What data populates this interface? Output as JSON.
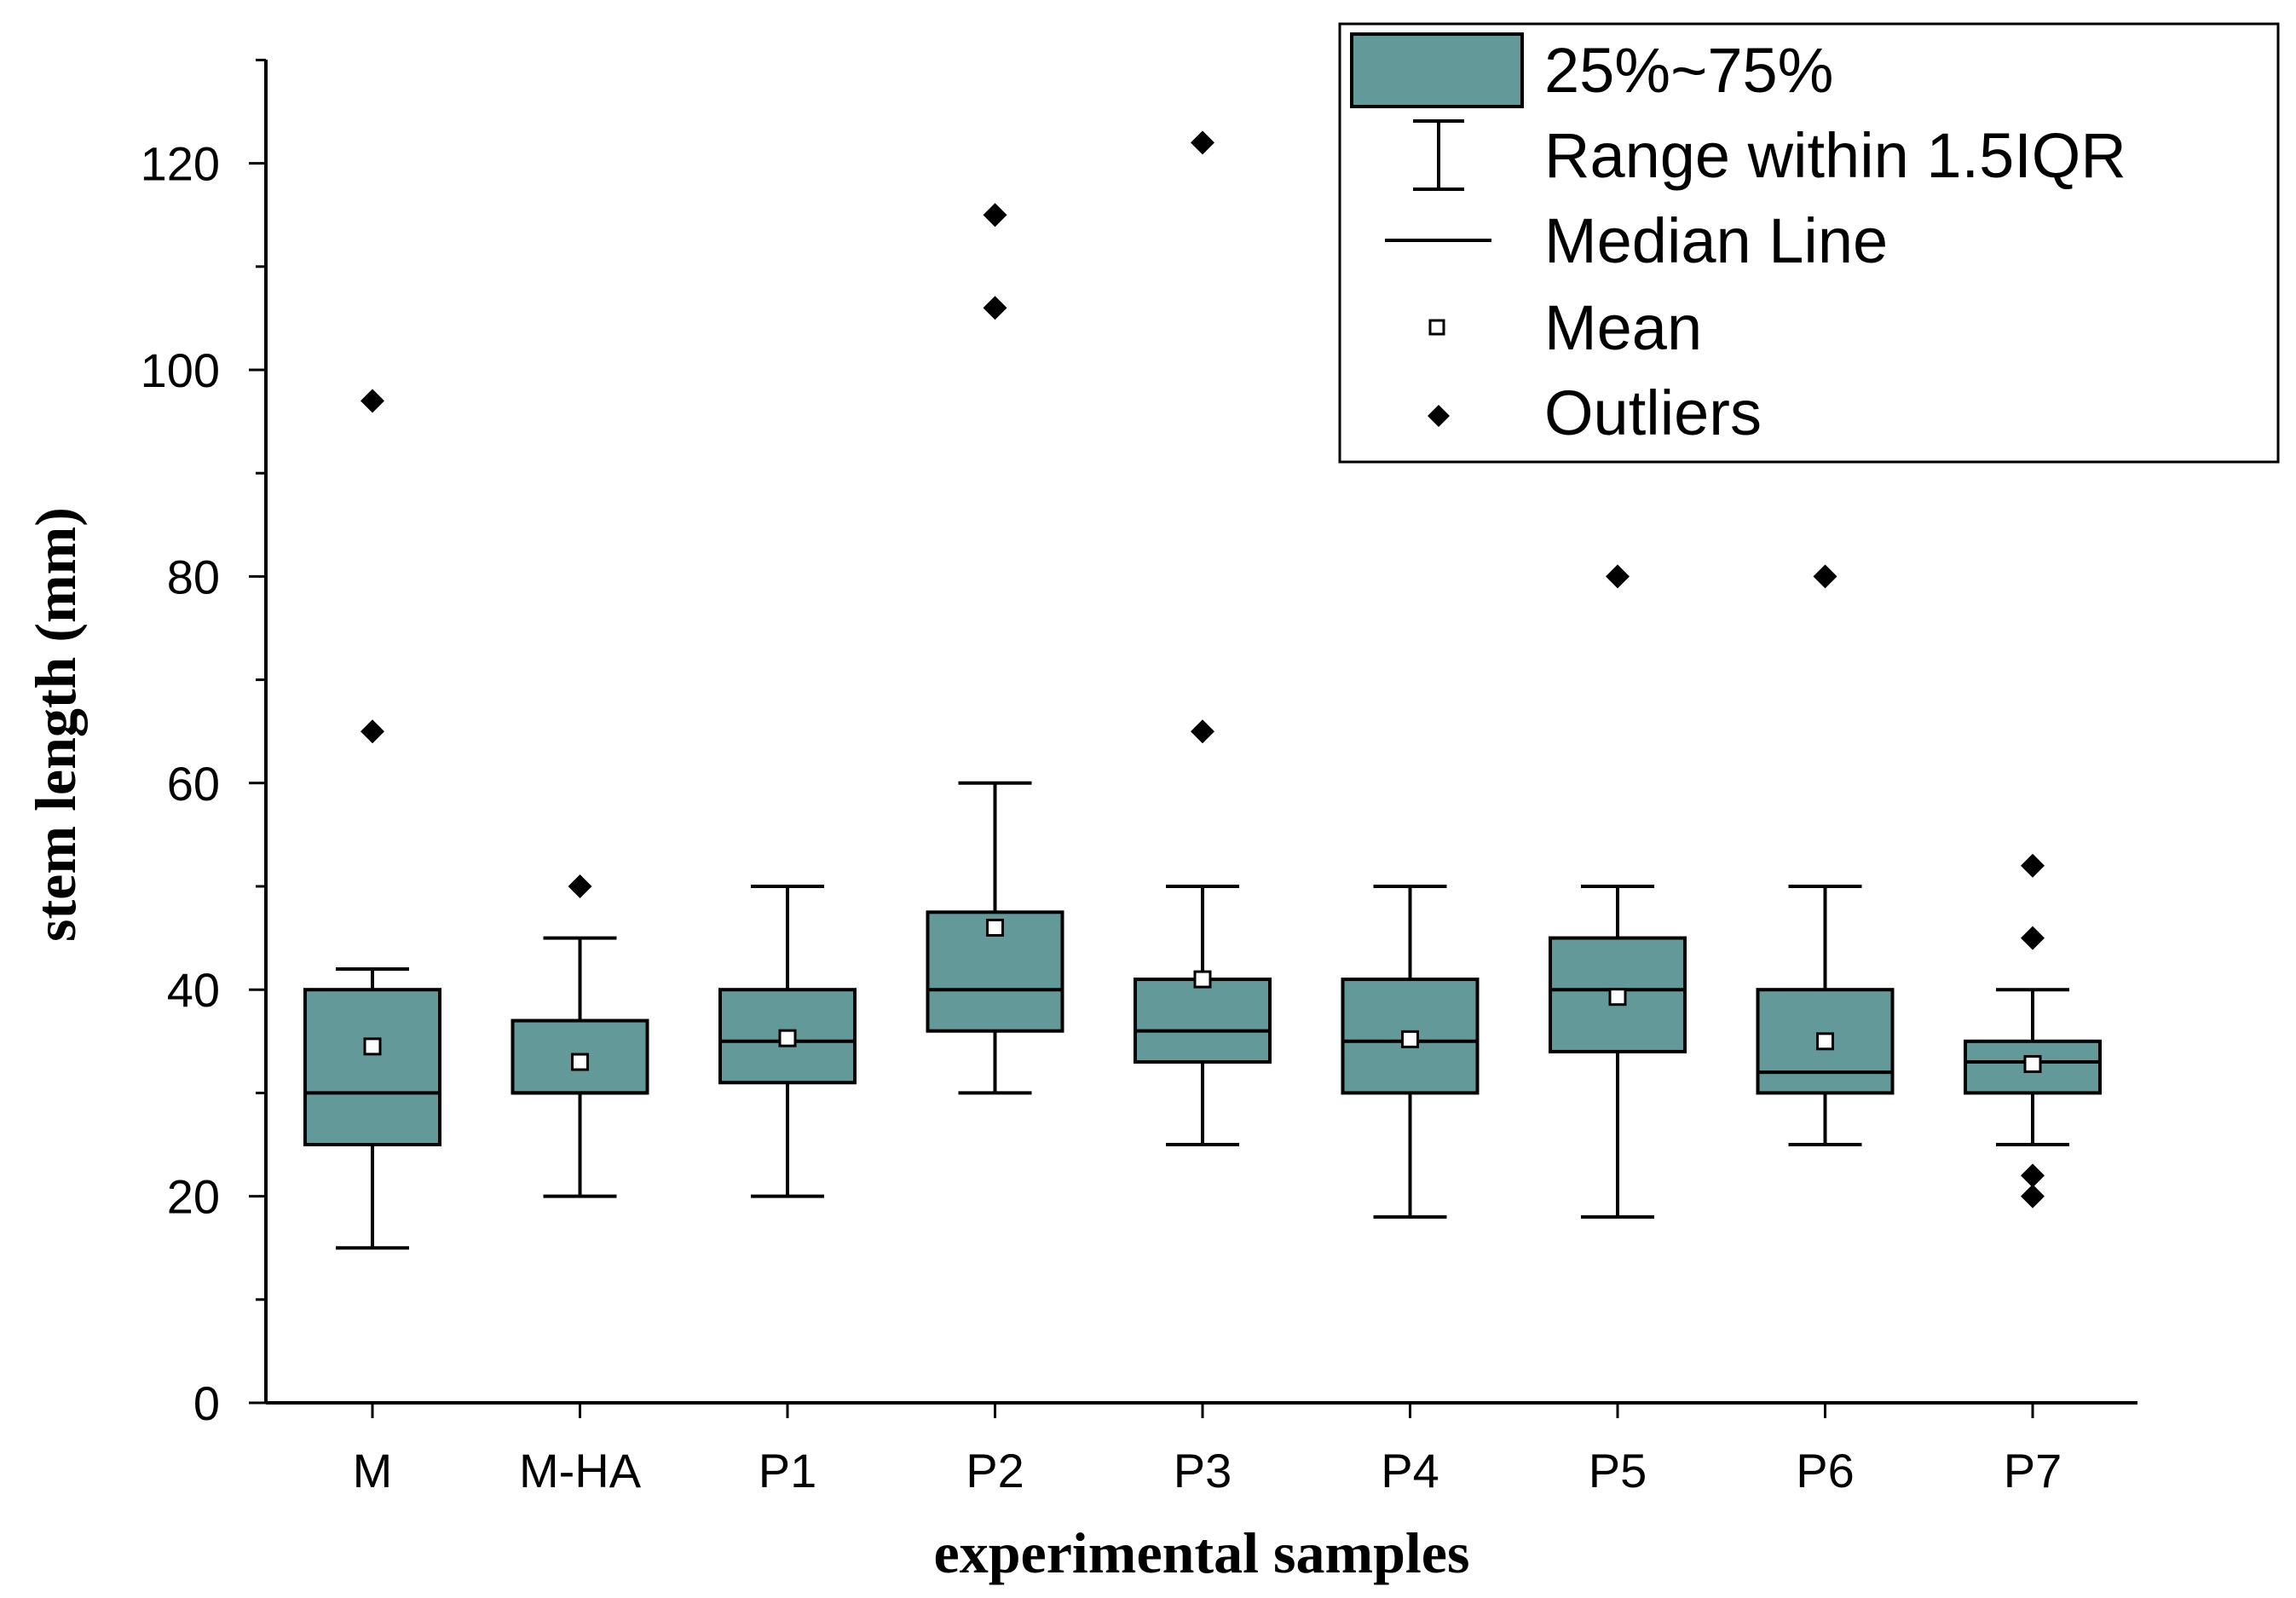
{
  "chart_data": {
    "type": "box",
    "title": "",
    "xlabel": "experimental samples",
    "ylabel": "stem length (mm)",
    "ylim": [
      0,
      130
    ],
    "yticks": [
      0,
      20,
      40,
      60,
      80,
      100,
      120
    ],
    "categories": [
      "M",
      "M-HA",
      "P1",
      "P2",
      "P3",
      "P4",
      "P5",
      "P6",
      "P7"
    ],
    "boxes": [
      {
        "label": "M",
        "q1": 25,
        "median": 30,
        "q3": 40,
        "whisker_low": 15,
        "whisker_high": 42,
        "mean": 34.5,
        "outliers": [
          65,
          97
        ]
      },
      {
        "label": "M-HA",
        "q1": 30,
        "median": 30,
        "q3": 37,
        "whisker_low": 20,
        "whisker_high": 45,
        "mean": 33,
        "outliers": [
          50
        ]
      },
      {
        "label": "P1",
        "q1": 31,
        "median": 35,
        "q3": 40,
        "whisker_low": 20,
        "whisker_high": 50,
        "mean": 35.3,
        "outliers": []
      },
      {
        "label": "P2",
        "q1": 36,
        "median": 40,
        "q3": 47.5,
        "whisker_low": 30,
        "whisker_high": 60,
        "mean": 46,
        "outliers": [
          106,
          115
        ]
      },
      {
        "label": "P3",
        "q1": 33,
        "median": 36,
        "q3": 41,
        "whisker_low": 25,
        "whisker_high": 50,
        "mean": 41,
        "outliers": [
          65,
          122
        ]
      },
      {
        "label": "P4",
        "q1": 30,
        "median": 35,
        "q3": 41,
        "whisker_low": 18,
        "whisker_high": 50,
        "mean": 35.2,
        "outliers": []
      },
      {
        "label": "P5",
        "q1": 34,
        "median": 40,
        "q3": 45,
        "whisker_low": 18,
        "whisker_high": 50,
        "mean": 39.3,
        "outliers": [
          80
        ]
      },
      {
        "label": "P6",
        "q1": 30,
        "median": 32,
        "q3": 40,
        "whisker_low": 25,
        "whisker_high": 50,
        "mean": 35,
        "outliers": [
          80
        ]
      },
      {
        "label": "P7",
        "q1": 30,
        "median": 33,
        "q3": 35,
        "whisker_low": 25,
        "whisker_high": 40,
        "mean": 32.8,
        "outliers": [
          20,
          22,
          45,
          52
        ]
      }
    ],
    "legend": {
      "position": "top-right",
      "entries": [
        "25%~75%",
        "Range within 1.5IQR",
        "Median Line",
        "Mean",
        "Outliers"
      ]
    },
    "colors": {
      "box_fill": "#639a99",
      "stroke": "#000000"
    }
  }
}
